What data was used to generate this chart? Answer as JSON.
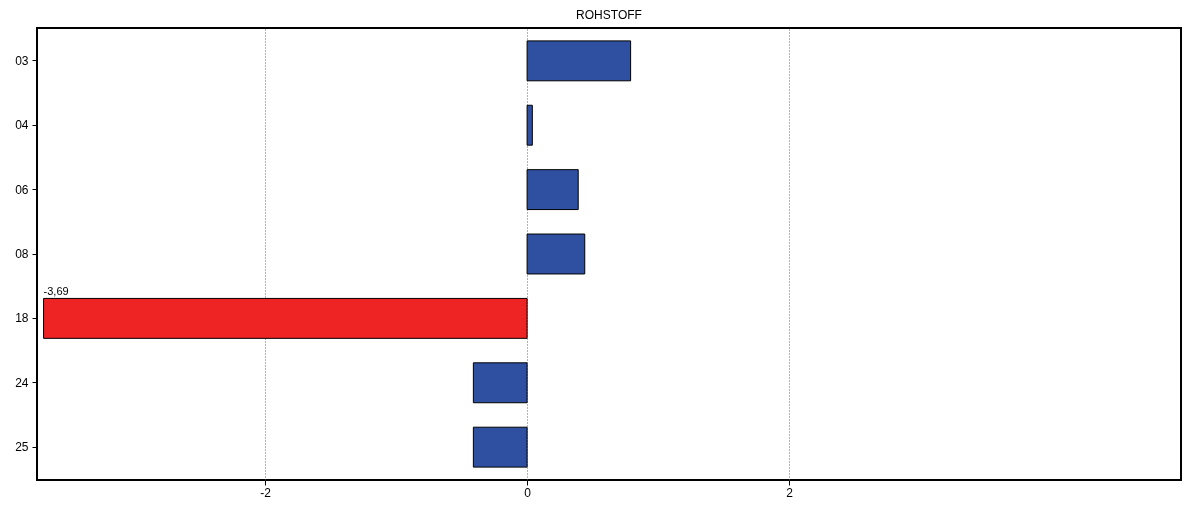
{
  "chart_data": {
    "type": "bar",
    "orientation": "horizontal",
    "title": "ROHSTOFF",
    "categories": [
      "03",
      "04",
      "06",
      "08",
      "18",
      "24",
      "25"
    ],
    "values": [
      0.79,
      0.04,
      0.39,
      0.44,
      -3.69,
      -0.41,
      -0.41
    ],
    "colors": [
      "#2f4fa0",
      "#2f4fa0",
      "#2f4fa0",
      "#2f4fa0",
      "#ee2424",
      "#2f4fa0",
      "#2f4fa0"
    ],
    "value_labels": [
      null,
      null,
      null,
      null,
      "-3,69",
      null,
      null
    ],
    "xlim": [
      -3.74,
      4.99
    ],
    "xticks": [
      -2,
      0,
      2
    ],
    "grid": "x"
  }
}
